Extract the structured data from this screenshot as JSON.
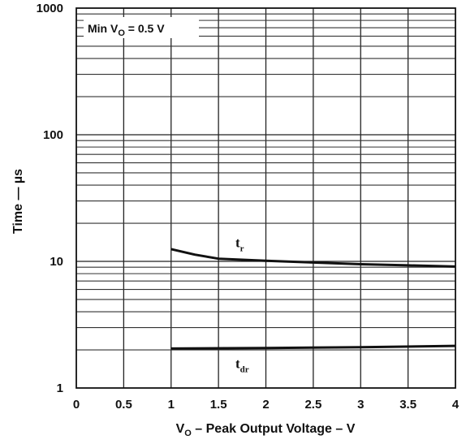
{
  "chart_data": {
    "type": "line",
    "xlabel": {
      "main": "V",
      "sub": "O",
      "rest": " – Peak Output Voltage – V"
    },
    "ylabel": "Time — µs",
    "xlim": [
      0,
      4
    ],
    "ylim": [
      1,
      1000
    ],
    "yscale": "log",
    "grid": true,
    "x_ticks": [
      "0",
      "0.5",
      "1",
      "1.5",
      "2",
      "2.5",
      "3",
      "3.5",
      "4"
    ],
    "y_ticks": [
      "1",
      "10",
      "100",
      "1000"
    ],
    "annotation": {
      "prefix": "Min V",
      "sub": "O",
      "suffix": " = 0.5 V"
    },
    "series": [
      {
        "name": "tr",
        "label_main": "t",
        "label_sub": "r",
        "x": [
          1.0,
          1.25,
          1.5,
          2.0,
          2.5,
          3.0,
          3.5,
          4.0
        ],
        "y": [
          12.5,
          11.3,
          10.5,
          10.1,
          9.8,
          9.5,
          9.3,
          9.1
        ]
      },
      {
        "name": "tdr",
        "label_main": "t",
        "label_sub": "dr",
        "x": [
          1.0,
          2.0,
          3.0,
          4.0
        ],
        "y": [
          2.05,
          2.07,
          2.1,
          2.15
        ]
      }
    ]
  }
}
